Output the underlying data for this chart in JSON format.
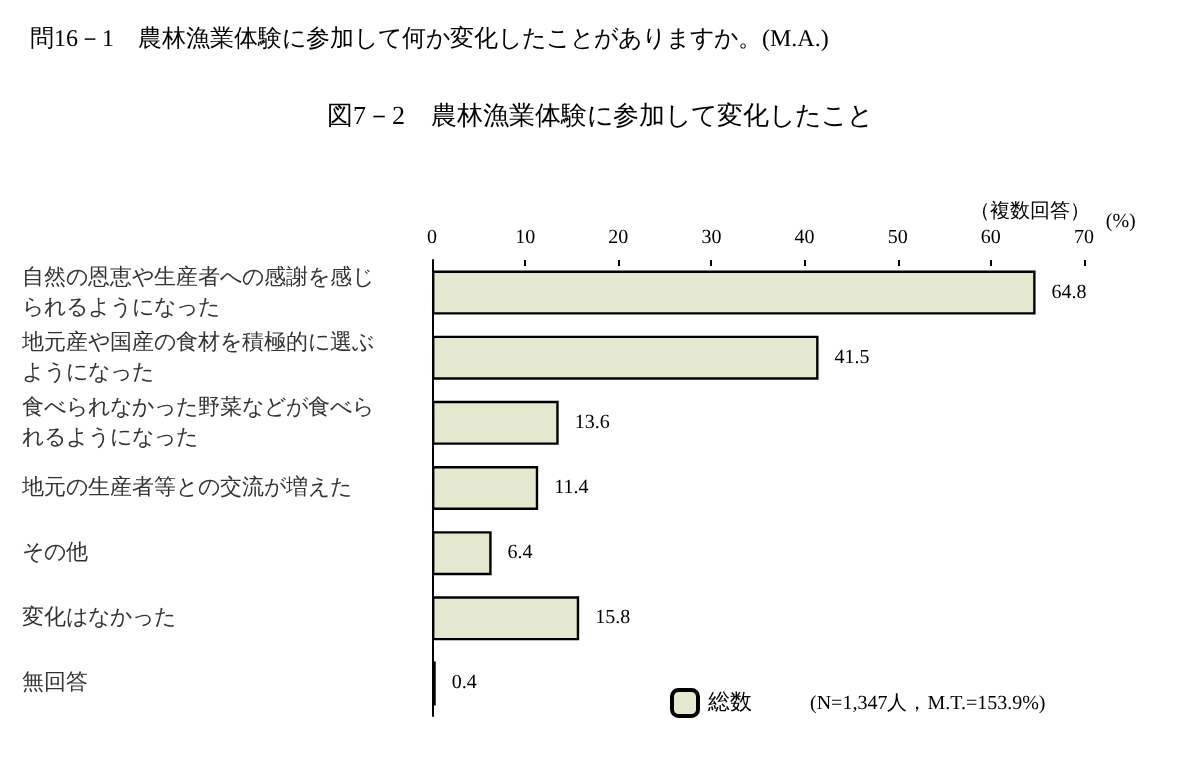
{
  "chart_data": {
    "type": "bar",
    "orientation": "horizontal",
    "title": "問16－1　農林漁業体験に参加して何か変化したことがありますか。(M.A.)",
    "subtitle": "図7－2　農林漁業体験に参加して変化したこと",
    "xlabel": "(%)",
    "annotations": [
      "（複数回答）",
      "(N=1,347人，M.T.=153.9%)"
    ],
    "categories": [
      "自然の恩恵や生産者への感謝を感じられるようになった",
      "地元産や国産の食材を積極的に選ぶようになった",
      "食べられなかった野菜などが食べられるようになった",
      "地元の生産者等との交流が増えた",
      "その他",
      "変化はなかった",
      "無回答"
    ],
    "series": [
      {
        "name": "総数",
        "color": "#e3e8cf",
        "values": [
          64.8,
          41.5,
          13.6,
          11.4,
          6.4,
          15.8,
          0.4
        ]
      }
    ],
    "xlim": [
      0,
      70
    ],
    "xticks": [
      0,
      10,
      20,
      30,
      40,
      50,
      60,
      70
    ],
    "data_labels": true,
    "grid": false,
    "legend": "bottom"
  }
}
